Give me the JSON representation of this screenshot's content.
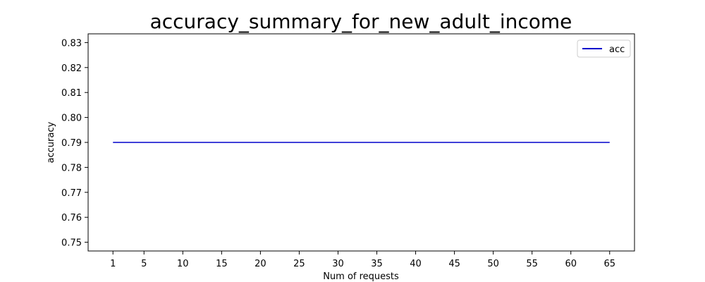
{
  "chart_data": {
    "type": "line",
    "title": "accuracy_summary_for_new_adult_income",
    "xlabel": "Num of requests",
    "ylabel": "accuracy",
    "xlim": [
      -2.2,
      68.2
    ],
    "ylim": [
      0.7465,
      0.8335
    ],
    "xticks": [
      1,
      5,
      10,
      15,
      20,
      25,
      30,
      35,
      40,
      45,
      50,
      55,
      60,
      65
    ],
    "yticks": [
      0.75,
      0.76,
      0.77,
      0.78,
      0.79,
      0.8,
      0.81,
      0.82,
      0.83
    ],
    "ytick_labels": [
      "0.75",
      "0.76",
      "0.77",
      "0.78",
      "0.79",
      "0.80",
      "0.81",
      "0.82",
      "0.83"
    ],
    "grid": false,
    "legend_position": "top-right",
    "series": [
      {
        "name": "acc",
        "color": "#0000cc",
        "x": [
          1,
          65
        ],
        "y": [
          0.79,
          0.79
        ]
      }
    ]
  }
}
